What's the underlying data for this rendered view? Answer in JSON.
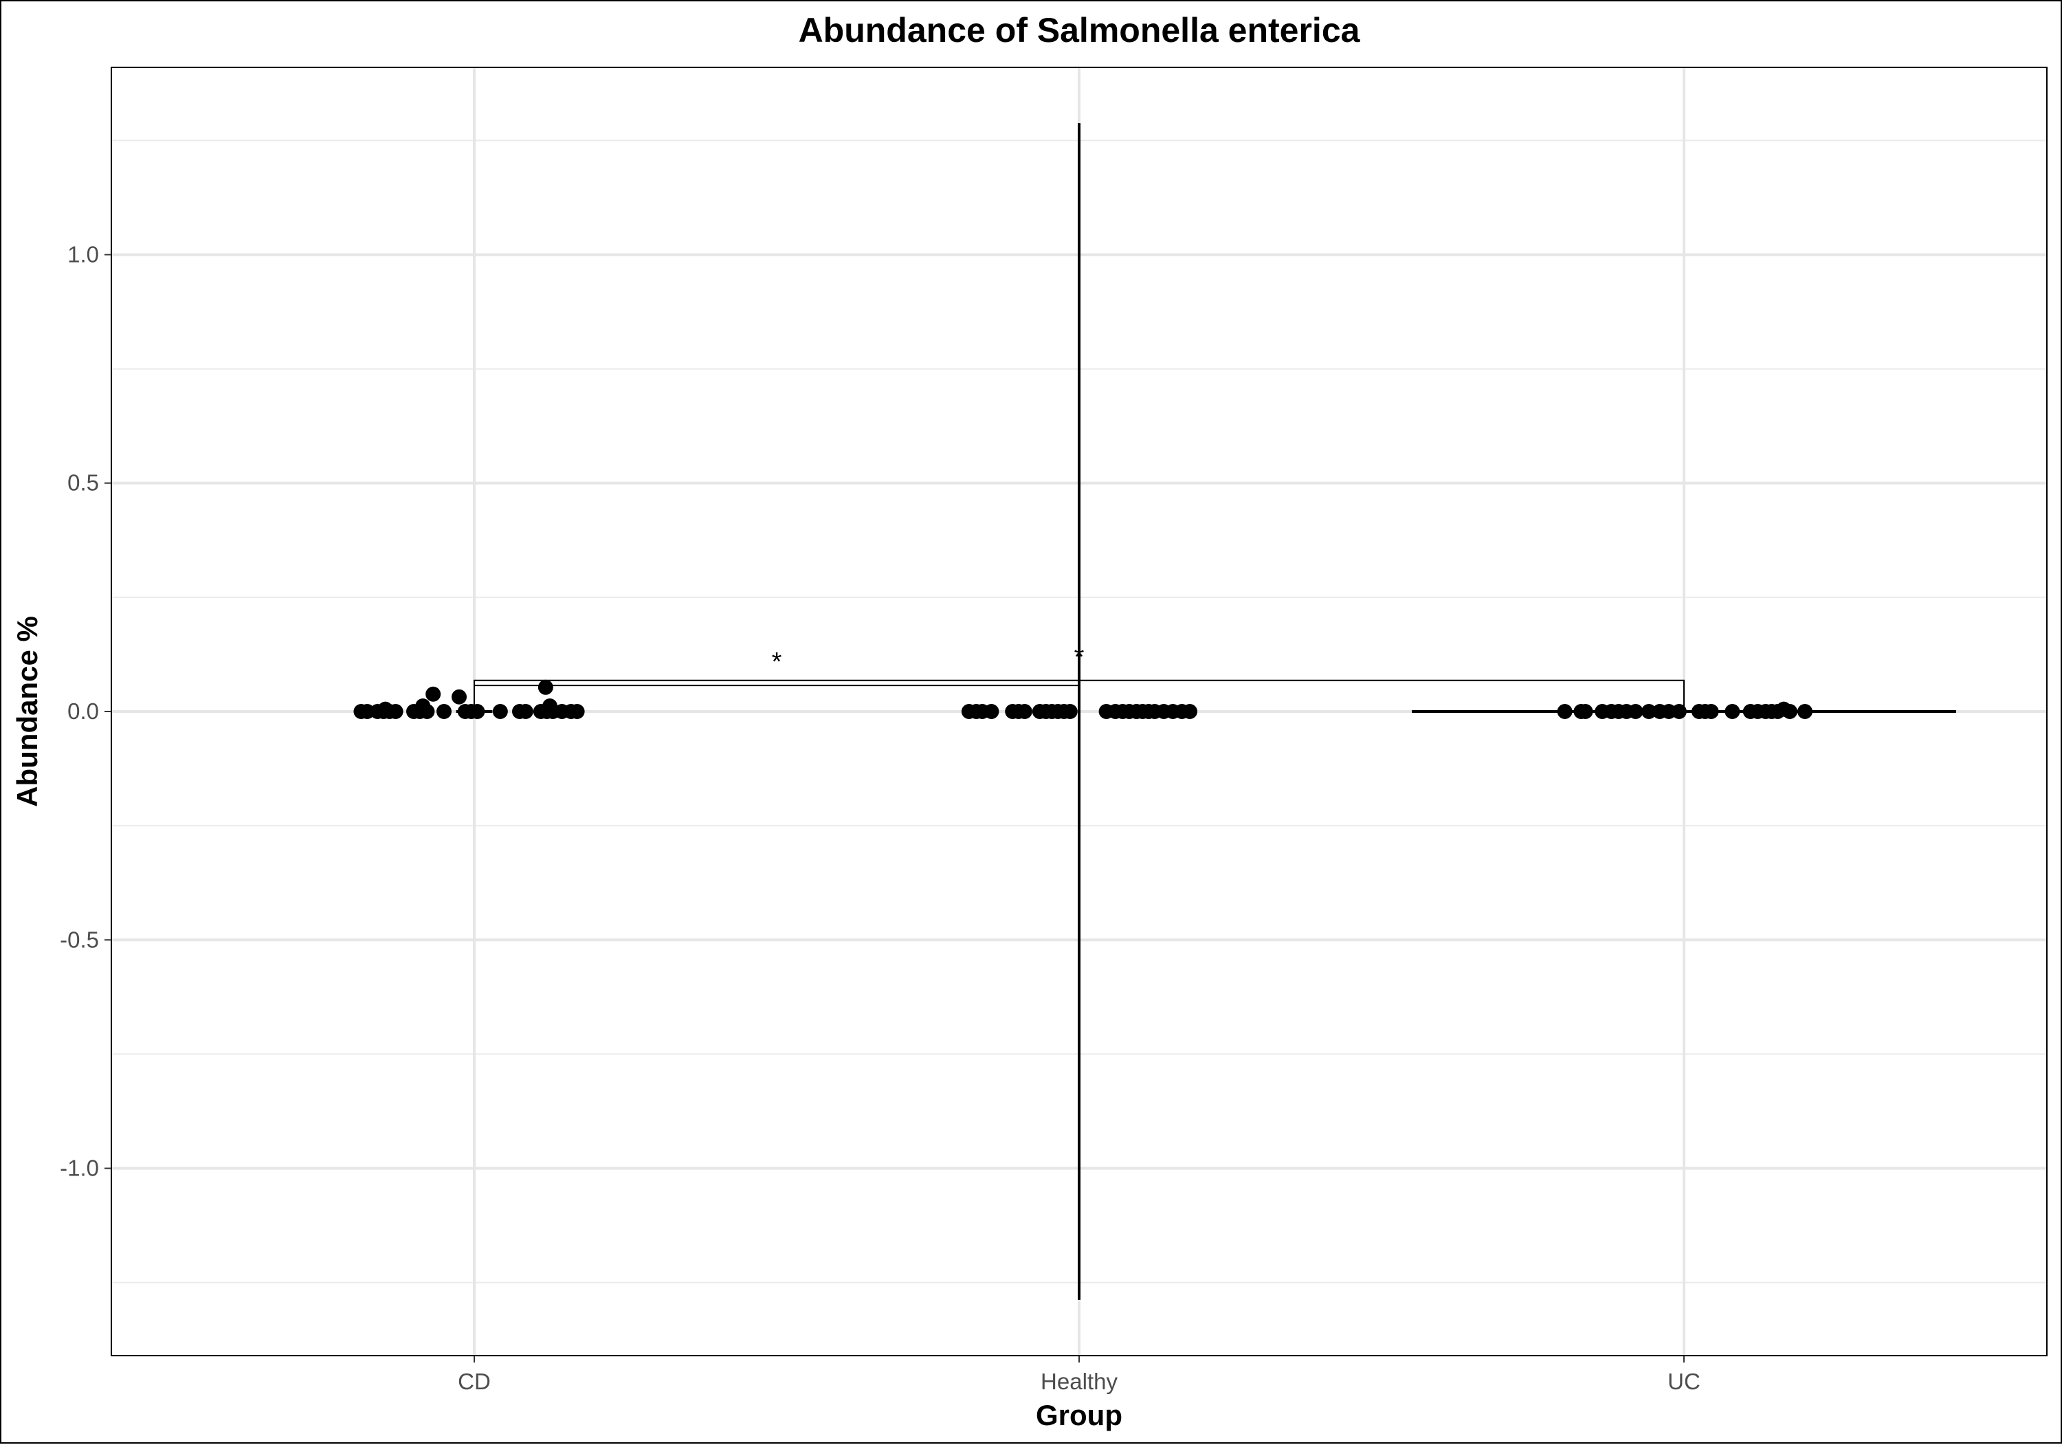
{
  "chart_data": {
    "type": "scatter",
    "title": "Abundance of Salmonella enterica",
    "xlabel": "Group",
    "ylabel": "Abundance %",
    "categories": [
      "CD",
      "Healthy",
      "UC"
    ],
    "ylim": [
      -1.41,
      1.41
    ],
    "yticks": [
      -1.0,
      -0.5,
      0.0,
      0.5,
      1.0
    ],
    "ytick_labels": [
      "-1.0",
      "-0.5",
      "0.0",
      "0.5",
      "1.0"
    ],
    "grid": true,
    "legend": "none",
    "point_color": "#000000",
    "points": {
      "CD": [
        {
          "dx": -0.187,
          "y": 0.0
        },
        {
          "dx": -0.177,
          "y": 0.0
        },
        {
          "dx": -0.16,
          "y": 0.0
        },
        {
          "dx": -0.15,
          "y": 0.0
        },
        {
          "dx": -0.147,
          "y": 0.005
        },
        {
          "dx": -0.14,
          "y": 0.0
        },
        {
          "dx": -0.13,
          "y": 0.0
        },
        {
          "dx": -0.1,
          "y": 0.0
        },
        {
          "dx": -0.09,
          "y": 0.0
        },
        {
          "dx": -0.085,
          "y": 0.012
        },
        {
          "dx": -0.078,
          "y": 0.0
        },
        {
          "dx": -0.068,
          "y": 0.038
        },
        {
          "dx": -0.05,
          "y": 0.0
        },
        {
          "dx": -0.025,
          "y": 0.032
        },
        {
          "dx": -0.015,
          "y": 0.0
        },
        {
          "dx": -0.005,
          "y": 0.0
        },
        {
          "dx": 0.005,
          "y": 0.0
        },
        {
          "dx": 0.043,
          "y": 0.0
        },
        {
          "dx": 0.075,
          "y": 0.0
        },
        {
          "dx": 0.085,
          "y": 0.0
        },
        {
          "dx": 0.11,
          "y": 0.0
        },
        {
          "dx": 0.118,
          "y": 0.053
        },
        {
          "dx": 0.12,
          "y": 0.0
        },
        {
          "dx": 0.125,
          "y": 0.012
        },
        {
          "dx": 0.13,
          "y": 0.0
        },
        {
          "dx": 0.145,
          "y": 0.0
        },
        {
          "dx": 0.16,
          "y": 0.0
        },
        {
          "dx": 0.17,
          "y": 0.0
        }
      ],
      "Healthy": [
        {
          "dx": -0.182,
          "y": 0.0
        },
        {
          "dx": -0.17,
          "y": 0.0
        },
        {
          "dx": -0.16,
          "y": 0.0
        },
        {
          "dx": -0.145,
          "y": 0.0
        },
        {
          "dx": -0.11,
          "y": 0.0
        },
        {
          "dx": -0.1,
          "y": 0.0
        },
        {
          "dx": -0.09,
          "y": 0.0
        },
        {
          "dx": -0.065,
          "y": 0.0
        },
        {
          "dx": -0.055,
          "y": 0.0
        },
        {
          "dx": -0.045,
          "y": 0.0
        },
        {
          "dx": -0.035,
          "y": 0.0
        },
        {
          "dx": -0.025,
          "y": 0.0
        },
        {
          "dx": -0.015,
          "y": 0.0
        },
        {
          "dx": 0.045,
          "y": 0.0
        },
        {
          "dx": 0.06,
          "y": 0.0
        },
        {
          "dx": 0.072,
          "y": 0.0
        },
        {
          "dx": 0.083,
          "y": 0.0
        },
        {
          "dx": 0.095,
          "y": 0.0
        },
        {
          "dx": 0.105,
          "y": 0.0
        },
        {
          "dx": 0.115,
          "y": 0.0
        },
        {
          "dx": 0.125,
          "y": 0.0
        },
        {
          "dx": 0.14,
          "y": 0.0
        },
        {
          "dx": 0.155,
          "y": 0.0
        },
        {
          "dx": 0.17,
          "y": 0.0
        },
        {
          "dx": 0.183,
          "y": 0.0
        }
      ],
      "UC": [
        {
          "dx": -0.197,
          "y": 0.0
        },
        {
          "dx": -0.17,
          "y": 0.0
        },
        {
          "dx": -0.163,
          "y": 0.0
        },
        {
          "dx": -0.135,
          "y": 0.0
        },
        {
          "dx": -0.12,
          "y": 0.0
        },
        {
          "dx": -0.108,
          "y": 0.0
        },
        {
          "dx": -0.095,
          "y": 0.0
        },
        {
          "dx": -0.08,
          "y": 0.0
        },
        {
          "dx": -0.058,
          "y": 0.0
        },
        {
          "dx": -0.04,
          "y": 0.0
        },
        {
          "dx": -0.025,
          "y": 0.0
        },
        {
          "dx": -0.008,
          "y": 0.0
        },
        {
          "dx": 0.025,
          "y": 0.0
        },
        {
          "dx": 0.035,
          "y": 0.0
        },
        {
          "dx": 0.045,
          "y": 0.0
        },
        {
          "dx": 0.08,
          "y": 0.0
        },
        {
          "dx": 0.11,
          "y": 0.0
        },
        {
          "dx": 0.122,
          "y": 0.0
        },
        {
          "dx": 0.135,
          "y": 0.0
        },
        {
          "dx": 0.145,
          "y": 0.0
        },
        {
          "dx": 0.155,
          "y": 0.0
        },
        {
          "dx": 0.165,
          "y": 0.005
        },
        {
          "dx": 0.175,
          "y": 0.0
        },
        {
          "dx": 0.2,
          "y": 0.0
        }
      ]
    },
    "horizontal_segments": [
      {
        "group": "CD",
        "x_from": -0.03,
        "x_to": 0.03,
        "y": 0.0
      },
      {
        "group": "UC",
        "x_from": -0.45,
        "x_to": 0.45,
        "y": 0.0
      }
    ],
    "vertical_segments": [
      {
        "group": "Healthy",
        "y_from": -1.288,
        "y_to": 1.288
      }
    ],
    "comparisons": [
      {
        "from": "CD",
        "to": "Healthy",
        "y": 0.057,
        "label": "*"
      },
      {
        "from": "CD",
        "to": "UC",
        "y": 0.068,
        "label": "*"
      }
    ]
  }
}
